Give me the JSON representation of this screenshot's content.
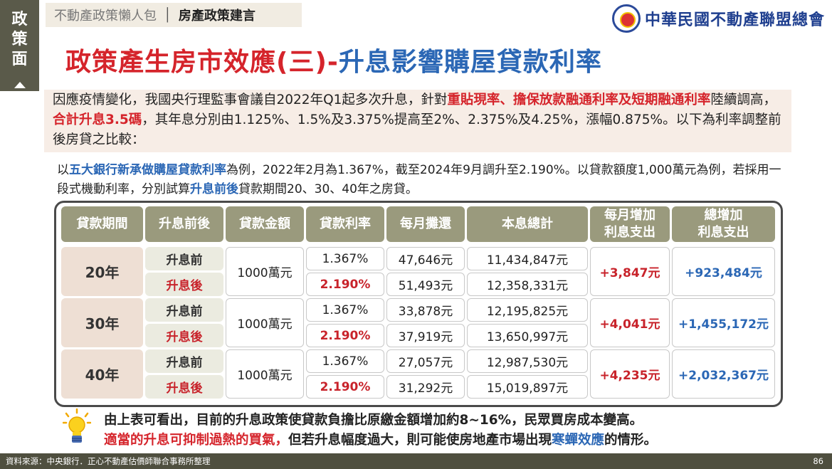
{
  "side_tab": {
    "chars": [
      "政",
      "策",
      "面"
    ]
  },
  "breadcrumb": {
    "parent": "不動產政策懶人包",
    "separator": "│",
    "current": "房產政策建言"
  },
  "org": {
    "name": "中華民國不動產聯盟總會",
    "logo_icon": "org-seal-icon"
  },
  "title": {
    "part1": "政策產生房市效應(三)-",
    "part2": "升息影響購屋貸款利率"
  },
  "intro": {
    "t1": "因應疫情變化，我國央行理監事會議自2022年Q1起多次升息，針對",
    "h1": "重貼現率、擔保放款融通利率及短期融通利率",
    "t2": "陸續調高，",
    "h2": "合計升息3.5碼",
    "t3": "，其年息分別由1.125%、1.5%及3.375%提高至2%、2.375%及4.25%，漲幅0.875%。以下為利率調整前後房貸之比較："
  },
  "para2": {
    "t1": "以",
    "h1": "五大銀行新承做購屋貸款利率",
    "t2": "為例，2022年2月為1.367%，截至2024年9月調升至2.190%。以貸款額度1,000萬元為例，若採用一段式機動利率，分別試算",
    "h2": "升息前後",
    "t3": "貸款期間20、30、40年之房貸。"
  },
  "table": {
    "headers": [
      "貸款期間",
      "升息前後",
      "貸款金額",
      "貸款利率",
      "每月攤還",
      "本息總計",
      "每月增加\n利息支出",
      "總增加\n利息支出"
    ],
    "groups": [
      {
        "term": "20年",
        "amount": "1000萬元",
        "monthly_increase": "+3,847元",
        "total_increase": "+923,484元",
        "rows": [
          {
            "phase": "升息前",
            "rate": "1.367%",
            "monthly": "47,646元",
            "total": "11,434,847元"
          },
          {
            "phase": "升息後",
            "rate": "2.190%",
            "monthly": "51,493元",
            "total": "12,358,331元"
          }
        ]
      },
      {
        "term": "30年",
        "amount": "1000萬元",
        "monthly_increase": "+4,041元",
        "total_increase": "+1,455,172元",
        "rows": [
          {
            "phase": "升息前",
            "rate": "1.367%",
            "monthly": "33,878元",
            "total": "12,195,825元"
          },
          {
            "phase": "升息後",
            "rate": "2.190%",
            "monthly": "37,919元",
            "total": "13,650,997元"
          }
        ]
      },
      {
        "term": "40年",
        "amount": "1000萬元",
        "monthly_increase": "+4,235元",
        "total_increase": "+2,032,367元",
        "rows": [
          {
            "phase": "升息前",
            "rate": "1.367%",
            "monthly": "27,057元",
            "total": "12,987,530元"
          },
          {
            "phase": "升息後",
            "rate": "2.190%",
            "monthly": "31,292元",
            "total": "15,019,897元"
          }
        ]
      }
    ]
  },
  "notes": {
    "icon": "lightbulb-icon",
    "line1": "由上表可看出，目前的升息政策使貸款負擔比原繳金額增加約8~16%，民眾買房成本變高。",
    "line2_h1": "適當的升息可抑制過熱的買氣，",
    "line2_t1": "但若升息幅度過大，則可能使房地產市場出現",
    "line2_h2": "寒蟬效應",
    "line2_t2": "的情形。"
  },
  "footer": {
    "source": "資料來源：中央銀行．正心不動產估價師聯合事務所整理",
    "page": "86"
  },
  "colors": {
    "red": "#d5242b",
    "blue": "#2b67b5",
    "header_bg": "#9a9a7d",
    "sidebar_bg": "#5a5a4a"
  }
}
